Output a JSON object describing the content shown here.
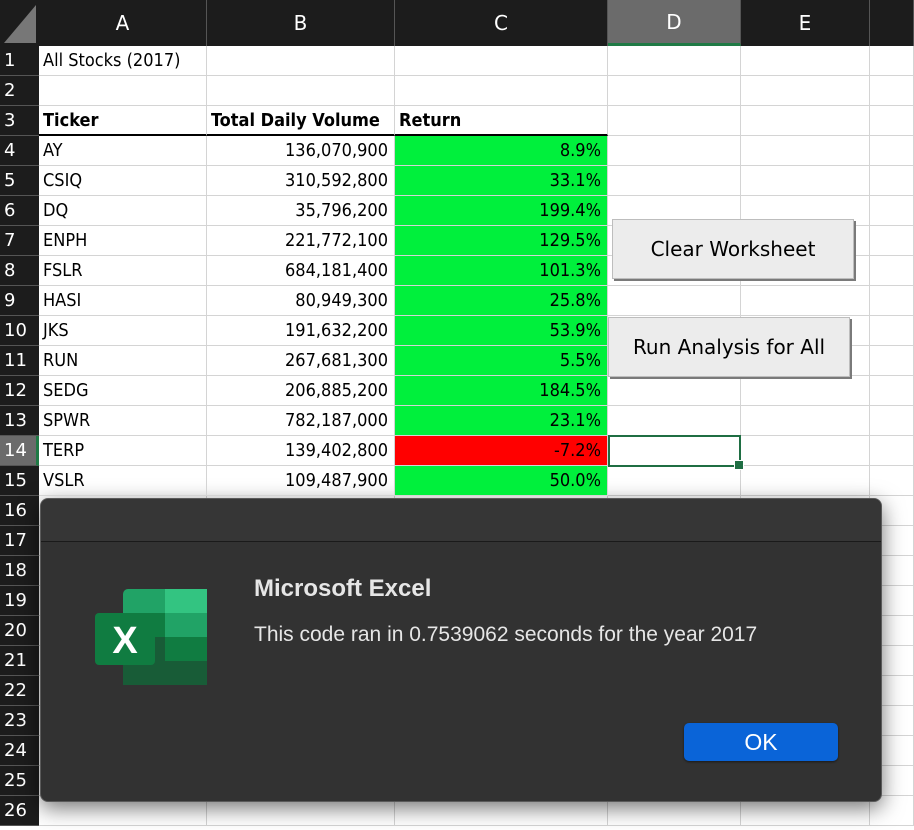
{
  "sheet": {
    "columns": [
      "A",
      "B",
      "C",
      "D",
      "E"
    ],
    "rows": [
      "1",
      "2",
      "3",
      "4",
      "5",
      "6",
      "7",
      "8",
      "9",
      "10",
      "11",
      "12",
      "13",
      "14",
      "15",
      "16",
      "17",
      "18",
      "19",
      "20",
      "21",
      "22",
      "23",
      "24",
      "25",
      "26"
    ],
    "selected_column": "D",
    "selected_row": "14",
    "title_cell": "All Stocks (2017)",
    "headers": {
      "ticker": "Ticker",
      "volume": "Total Daily Volume",
      "return": "Return"
    },
    "stocks": [
      {
        "ticker": "AY",
        "volume": "136,070,900",
        "return": "8.9%",
        "status": "positive"
      },
      {
        "ticker": "CSIQ",
        "volume": "310,592,800",
        "return": "33.1%",
        "status": "positive"
      },
      {
        "ticker": "DQ",
        "volume": "35,796,200",
        "return": "199.4%",
        "status": "positive"
      },
      {
        "ticker": "ENPH",
        "volume": "221,772,100",
        "return": "129.5%",
        "status": "positive"
      },
      {
        "ticker": "FSLR",
        "volume": "684,181,400",
        "return": "101.3%",
        "status": "positive"
      },
      {
        "ticker": "HASI",
        "volume": "80,949,300",
        "return": "25.8%",
        "status": "positive"
      },
      {
        "ticker": "JKS",
        "volume": "191,632,200",
        "return": "53.9%",
        "status": "positive"
      },
      {
        "ticker": "RUN",
        "volume": "267,681,300",
        "return": "5.5%",
        "status": "positive"
      },
      {
        "ticker": "SEDG",
        "volume": "206,885,200",
        "return": "184.5%",
        "status": "positive"
      },
      {
        "ticker": "SPWR",
        "volume": "782,187,000",
        "return": "23.1%",
        "status": "positive"
      },
      {
        "ticker": "TERP",
        "volume": "139,402,800",
        "return": "-7.2%",
        "status": "negative"
      },
      {
        "ticker": "VSLR",
        "volume": "109,487,900",
        "return": "50.0%",
        "status": "positive"
      }
    ],
    "colors": {
      "positive": "#00f03c",
      "negative": "#ff0000",
      "header_bg": "#1c1c1c",
      "selection": "#1f6e43"
    }
  },
  "buttons": {
    "clear_worksheet": "Clear Worksheet",
    "run_analysis": "Run Analysis for All"
  },
  "dialog": {
    "app_icon": "excel-logo-icon",
    "title": "Microsoft Excel",
    "message": "This code ran in 0.7539062 seconds for the year 2017",
    "ok_label": "OK"
  }
}
